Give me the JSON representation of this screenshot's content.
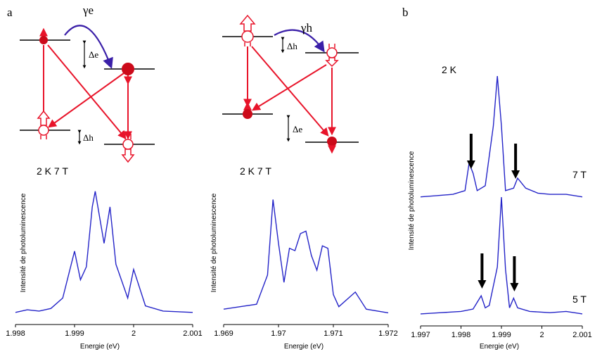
{
  "labels": {
    "panel_a": "a",
    "panel_b": "b"
  },
  "diagrams": {
    "left": {
      "gamma": "γe",
      "delta_top": "Δe",
      "delta_bottom": "Δh"
    },
    "right": {
      "gamma": "γh",
      "delta_top": "Δh",
      "delta_bottom": "Δe"
    }
  },
  "colors": {
    "trace": "#2424c8",
    "arrow": "#e8142a",
    "dot": "#cc0a1a",
    "curved_arrow": "#3a1fa8",
    "heavy_arrow": "#000000"
  },
  "chart_data": [
    {
      "type": "line",
      "condition_label": "2 K   7 T",
      "ylabel": "Intensité de photoluminescence",
      "xlabel": "Energie (eV)",
      "xlim": [
        1.998,
        2.001
      ],
      "xticks": [
        "1.998",
        "1.999",
        "2",
        "2.001"
      ],
      "x": [
        1.998,
        1.9982,
        1.9984,
        1.9986,
        1.9988,
        1.999,
        1.9991,
        1.9992,
        1.9993,
        1.99935,
        1.9995,
        1.9996,
        1.9997,
        1.9999,
        2.0,
        2.0002,
        2.0005,
        2.001
      ],
      "y": [
        0.05,
        0.07,
        0.06,
        0.08,
        0.16,
        0.52,
        0.3,
        0.4,
        0.86,
        0.98,
        0.58,
        0.86,
        0.42,
        0.16,
        0.38,
        0.1,
        0.06,
        0.05
      ]
    },
    {
      "type": "line",
      "condition_label": "2 K   7 T",
      "ylabel": "Intensité de photoluminescence",
      "xlabel": "Energie (eV)",
      "xlim": [
        1.969,
        1.972
      ],
      "xticks": [
        "1.969",
        "1.97",
        "1.971",
        "1.972"
      ],
      "x": [
        1.969,
        1.9693,
        1.9696,
        1.9698,
        1.9699,
        1.97,
        1.9701,
        1.9702,
        1.9703,
        1.9704,
        1.9705,
        1.9706,
        1.9707,
        1.9708,
        1.9709,
        1.971,
        1.9711,
        1.9714,
        1.9716,
        1.972
      ],
      "y": [
        0.08,
        0.1,
        0.12,
        0.36,
        0.98,
        0.62,
        0.3,
        0.58,
        0.56,
        0.7,
        0.72,
        0.52,
        0.4,
        0.6,
        0.58,
        0.2,
        0.1,
        0.22,
        0.08,
        0.05
      ]
    },
    {
      "type": "line",
      "condition_label": "2 K",
      "ylabel": "Intensité de photoluminescence",
      "xlabel": "Energie (eV)",
      "xlim": [
        1.997,
        2.001
      ],
      "xticks": [
        "1.997",
        "1.998",
        "1.999",
        "2",
        "2.001"
      ],
      "series": [
        {
          "name": "7 T",
          "x": [
            1.997,
            1.9974,
            1.9978,
            1.9981,
            1.9982,
            1.9983,
            1.9984,
            1.9986,
            1.9988,
            1.9989,
            1.999,
            1.9991,
            1.9993,
            1.9994,
            1.9996,
            1.9999,
            2.0002,
            2.0006,
            2.001
          ],
          "y": [
            0.03,
            0.04,
            0.05,
            0.08,
            0.3,
            0.22,
            0.08,
            0.12,
            0.6,
            1.0,
            0.6,
            0.08,
            0.1,
            0.18,
            0.1,
            0.06,
            0.05,
            0.05,
            0.03
          ]
        },
        {
          "name": "5 T",
          "x": [
            1.997,
            1.9975,
            1.998,
            1.9983,
            1.9985,
            1.9986,
            1.9987,
            1.9989,
            1.999,
            1.9991,
            1.9992,
            1.9993,
            1.9994,
            1.9997,
            2.0002,
            2.0006,
            2.001
          ],
          "y": [
            0.03,
            0.04,
            0.05,
            0.07,
            0.18,
            0.08,
            0.1,
            0.42,
            1.0,
            0.4,
            0.08,
            0.16,
            0.08,
            0.05,
            0.04,
            0.05,
            0.03
          ]
        }
      ],
      "arrows": [
        {
          "series": "7 T",
          "x": 1.99825
        },
        {
          "series": "7 T",
          "x": 1.99935
        },
        {
          "series": "5 T",
          "x": 1.99852
        },
        {
          "series": "5 T",
          "x": 1.99932
        }
      ]
    }
  ]
}
